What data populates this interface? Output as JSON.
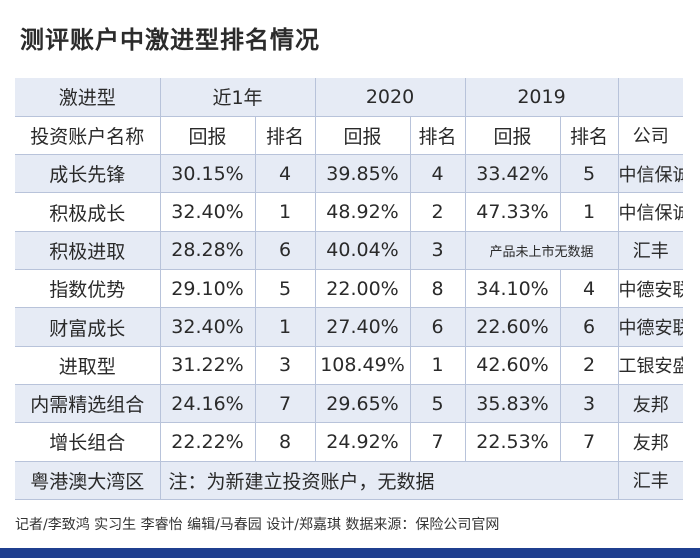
{
  "title": "测评账户中激进型排名情况",
  "table": {
    "header_row1": {
      "category": "激进型",
      "period1": "近1年",
      "period2": "2020",
      "period3": "2019",
      "blank": ""
    },
    "header_row2": {
      "name": "投资账户名称",
      "return1": "回报",
      "rank1": "排名",
      "return2": "回报",
      "rank2": "排名",
      "return3": "回报",
      "rank3": "排名",
      "company": "公司"
    },
    "rows": [
      {
        "name": "成长先锋",
        "r1": "30.15%",
        "k1": "4",
        "r2": "39.85%",
        "k2": "4",
        "r3": "33.42%",
        "k3": "5",
        "company": "中信保诚"
      },
      {
        "name": "积极成长",
        "r1": "32.40%",
        "k1": "1",
        "r2": "48.92%",
        "k2": "2",
        "r3": "47.33%",
        "k3": "1",
        "company": "中信保诚"
      },
      {
        "name": "积极进取",
        "r1": "28.28%",
        "k1": "6",
        "r2": "40.04%",
        "k2": "3",
        "r3_note": "产品未上市无数据",
        "company": "汇丰"
      },
      {
        "name": "指数优势",
        "r1": "29.10%",
        "k1": "5",
        "r2": "22.00%",
        "k2": "8",
        "r3": "34.10%",
        "k3": "4",
        "company": "中德安联"
      },
      {
        "name": "财富成长",
        "r1": "32.40%",
        "k1": "1",
        "r2": "27.40%",
        "k2": "6",
        "r3": "22.60%",
        "k3": "6",
        "company": "中德安联"
      },
      {
        "name": "进取型",
        "r1": "31.22%",
        "k1": "3",
        "r2": "108.49%",
        "k2": "1",
        "r3": "42.60%",
        "k3": "2",
        "company": "工银安盛"
      },
      {
        "name": "内需精选组合",
        "r1": "24.16%",
        "k1": "7",
        "r2": "29.65%",
        "k2": "5",
        "r3": "35.83%",
        "k3": "3",
        "company": "友邦"
      },
      {
        "name": "增长组合",
        "r1": "22.22%",
        "k1": "8",
        "r2": "24.92%",
        "k2": "7",
        "r3": "22.53%",
        "k3": "7",
        "company": "友邦"
      }
    ],
    "last_row": {
      "name": "粤港澳大湾区",
      "note": "注：为新建立投资账户，无数据",
      "company": "汇丰"
    }
  },
  "footer": "记者/李致鸿 实习生 李睿怡 编辑/马春园 设计/郑嘉琪 数据来源：保险公司官网",
  "colors": {
    "zebra": "#e6ebf5",
    "bar": "#1f3f8f",
    "grid": "#b8c3da"
  }
}
